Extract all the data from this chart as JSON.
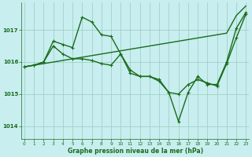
{
  "xlabel": "Graphe pression niveau de la mer (hPa)",
  "background_color": "#c8eef0",
  "grid_color": "#99ccbb",
  "line_color": "#1a6b1a",
  "ylim": [
    1013.6,
    1017.85
  ],
  "yticks": [
    1014,
    1015,
    1016,
    1017
  ],
  "xlim": [
    -0.3,
    23.3
  ],
  "series": [
    {
      "y": [
        1015.85,
        1015.9,
        1016.0,
        1016.65,
        1016.55,
        1016.45,
        1017.4,
        1017.25,
        1016.85,
        1016.8,
        1016.25,
        1015.75,
        1015.55,
        1015.55,
        1015.4,
        1015.05,
        1014.15,
        1015.05,
        1015.55,
        1015.3,
        1015.3,
        1016.0,
        1017.05,
        1017.55
      ],
      "marker": true,
      "linewidth": 1.0
    },
    {
      "y": [
        1015.85,
        1015.9,
        1016.0,
        1016.5,
        1016.25,
        1016.1,
        1016.1,
        1016.05,
        1015.95,
        1015.9,
        1016.25,
        1015.65,
        1015.55,
        1015.55,
        1015.45,
        1015.05,
        1015.0,
        1015.3,
        1015.45,
        1015.35,
        1015.25,
        1015.95,
        1016.75,
        1017.5
      ],
      "marker": true,
      "linewidth": 1.0
    },
    {
      "y": [
        1015.85,
        1015.9,
        1015.95,
        1016.0,
        1016.05,
        1016.1,
        1016.15,
        1016.2,
        1016.25,
        1016.3,
        1016.35,
        1016.4,
        1016.45,
        1016.5,
        1016.55,
        1016.6,
        1016.65,
        1016.7,
        1016.75,
        1016.8,
        1016.85,
        1016.9,
        1017.45,
        1017.75
      ],
      "marker": false,
      "linewidth": 1.0
    }
  ]
}
